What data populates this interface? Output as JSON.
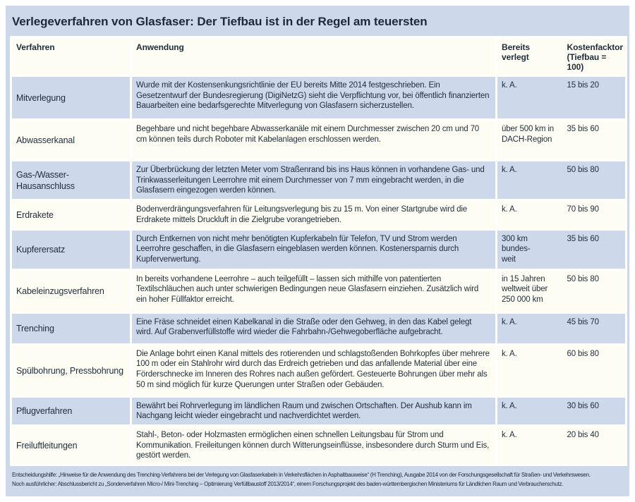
{
  "title": "Verlegeverfahren von Glasfaser: Der Tiefbau ist in der Regel am teuersten",
  "header": {
    "verfahren": "Verfahren",
    "anwendung": "Anwendung",
    "bereits_verlegt": "Bereits verlegt",
    "kostenfaktor_line1": "Kostenfacktor",
    "kostenfaktor_line2": "(Tiefbau = 100)"
  },
  "chart_data": {
    "type": "table",
    "title": "Verlegeverfahren von Glasfaser: Der Tiefbau ist in der Regel am teuersten",
    "columns": [
      "Verfahren",
      "Anwendung",
      "Bereits verlegt",
      "Kostenfacktor (Tiefbau = 100)"
    ],
    "rows": [
      {
        "verfahren": "Mitverlegung",
        "anwendung": "Wurde mit der Kostensenkungsrichtlinie der EU bereits Mitte 2014 festgeschrieben. Ein Gesetzentwurf der Bundesregierung (DigiNetzG) sieht die Verpflichtung vor, bei öffentlich finanzierten Bauarbeiten eine bedarfsgerechte Mitverlegung von Glasfasern sicherzustellen.",
        "bereits_verlegt": "k. A.",
        "kostenfaktor": "15 bis 20"
      },
      {
        "verfahren": "Abwasserkanal",
        "anwendung": "Begehbare und nicht begehbare Abwasserkanäle mit einem Durchmesser zwischen 20 cm und 70 cm können teils durch Roboter mit Kabelanlagen erschlossen werden.",
        "bereits_verlegt": "über 500 km in\nDACH-Region",
        "kostenfaktor": "35 bis 60"
      },
      {
        "verfahren": "Gas-/Wasser-Hausanschluss",
        "anwendung": "Zur Überbrückung der letzten Meter vom Straßenrand bis ins Haus können in vorhandene Gas- und Trinkwasserleitungen Leerrohre mit einem Durchmesser von 7 mm eingebracht werden, in die Glasfasern eingezogen werden können.",
        "bereits_verlegt": "k. A.",
        "kostenfaktor": "50 bis 80"
      },
      {
        "verfahren": "Erdrakete",
        "anwendung": "Bodenverdrängungsverfahren für Leitungsverlegung bis zu 15 m. Von einer Startgrube wird die Erdrakete mittels Druckluft in die Zielgrube vorangetrieben.",
        "bereits_verlegt": "k. A.",
        "kostenfaktor": "70 bis 90"
      },
      {
        "verfahren": "Kupferersatz",
        "anwendung": "Durch Entkernen von nicht mehr benötigten Kupferkabeln für Telefon, TV und Strom werden Leerrohre geschaffen, in die Glasfasern eingeblasen werden können. Kostenersparnis durch Kupferverwertung.",
        "bereits_verlegt": "300 km bundes-\nweit",
        "kostenfaktor": "35 bis 60"
      },
      {
        "verfahren": "Kabeleinzugsverfahren",
        "anwendung": "In bereits vorhandene Leerrohre – auch teilgefüllt – lassen sich mithilfe von patentierten Textilschläuchen auch unter schwierigen Bedingungen neue Glasfasern einziehen. Zusätzlich wird ein hoher Füllfaktor erreicht.",
        "bereits_verlegt": "in 15 Jahren\nweltweit über\n250 000 km",
        "kostenfaktor": "50 bis 80"
      },
      {
        "verfahren": "Trenching",
        "anwendung": "Eine Fräse schneidet einen Kabelkanal in die Straße oder den Gehweg, in den das Kabel gelegt wird. Auf Grabenverfüllstoffe wird wieder die Fahrbahn-/Gehwegoberfläche aufgebracht.",
        "bereits_verlegt": "k. A.",
        "kostenfaktor": "45 bis 70"
      },
      {
        "verfahren": "Spülbohrung, Pressbohrung",
        "anwendung": "Die Anlage bohrt einen Kanal mittels des rotierenden und schlagstoßenden Bohrkopfes über mehrere 100 m oder ein Stahlrohr wird durch das Erdreich getrieben und das anfallende Material über eine Förderschnecke im Inneren des Rohres nach außen gefördert. Gesteuerte Bohrungen über mehr als 50 m sind möglich für kurze Querungen unter Straßen oder Gebäuden.",
        "bereits_verlegt": "k. A.",
        "kostenfaktor": "60 bis 80"
      },
      {
        "verfahren": "Pflugverfahren",
        "anwendung": "Bewährt bei Rohrverlegung im ländlichen Raum und zwischen Ortschaften. Der Aushub kann im Nachgang leicht wieder eingebracht und nachverdichtet werden.",
        "bereits_verlegt": "k. A.",
        "kostenfaktor": "30 bis 60"
      },
      {
        "verfahren": "Freiluftleitungen",
        "anwendung": "Stahl-, Beton- oder Holzmasten ermöglichen einen schnellen Leitungsbau für Strom und Kommunikation. Freileitungen können durch Witterungseinflüsse, insbesondere durch Sturm und Eis, gestört werden.",
        "bereits_verlegt": "k. A.",
        "kostenfaktor": "20 bis 40"
      }
    ]
  },
  "footnotes": [
    "Entscheidungshilfe: „Hinweise für die Anwendung des Trenching-Verfahrens bei der Verlegung von Glasfaserkabeln in Verkehrsflächen in Asphaltbauweise“ (H Trenching), Ausgabe 2014 von der Forschungsgesellschaft für Straßen- und Verkehrswesen.",
    "Noch ausführlicher: Abschlussbericht zu „Sonderverfahren Micro-/ Mini-Trenching – Optimierung Verfüllbaustoff 2013/2014“, einem Forschungsprojekt des baden-württembergischen Ministeriums für Ländlichen Raum und Verbraucherschutz."
  ],
  "colors": {
    "panel_blue": "#cdd8eb",
    "row_cream": "#fdfdf4",
    "separator_white": "#ffffff",
    "text_dark": "#1b2a3b"
  }
}
